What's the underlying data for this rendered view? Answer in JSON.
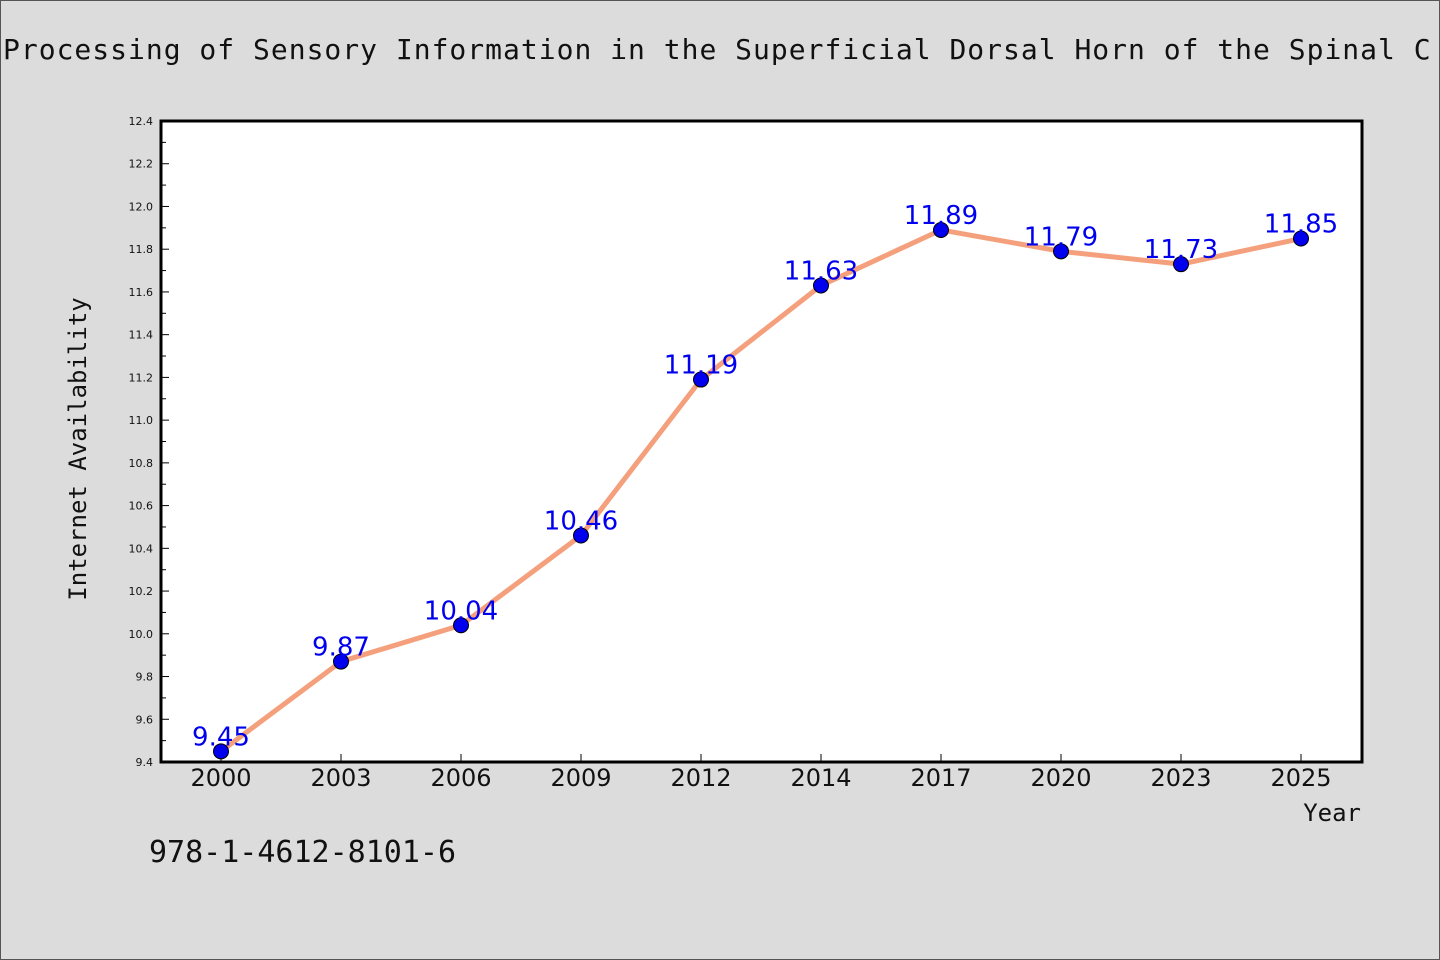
{
  "page": {
    "title": "Processing of Sensory Information in the Superficial Dorsal Horn of the Spinal C",
    "isbn": "978-1-4612-8101-6"
  },
  "chart_data": {
    "type": "line",
    "x": [
      "2000",
      "2003",
      "2006",
      "2009",
      "2012",
      "2014",
      "2017",
      "2020",
      "2023",
      "2025"
    ],
    "series": [
      {
        "values": [
          9.45,
          9.87,
          10.04,
          10.46,
          11.19,
          11.63,
          11.89,
          11.79,
          11.73,
          11.85
        ],
        "labels": [
          "9.45",
          "9.87",
          "10.04",
          "10.46",
          "11.19",
          "11.63",
          "11.89",
          "11.79",
          "11.73",
          "11.85"
        ],
        "line_color": "#f5a07d",
        "marker_color": "#0000ee"
      }
    ],
    "xlabel": "Year",
    "ylabel": "Internet Availability",
    "ylim": [
      9.4,
      12.4
    ],
    "yticks": [
      "9.4",
      "9.6",
      "9.8",
      "10.0",
      "10.2",
      "10.4",
      "10.6",
      "10.8",
      "11.0",
      "11.2",
      "11.4",
      "11.6",
      "11.8",
      "12.0",
      "12.2",
      "12.4"
    ],
    "grid": false,
    "label_color": "#0000ee"
  }
}
